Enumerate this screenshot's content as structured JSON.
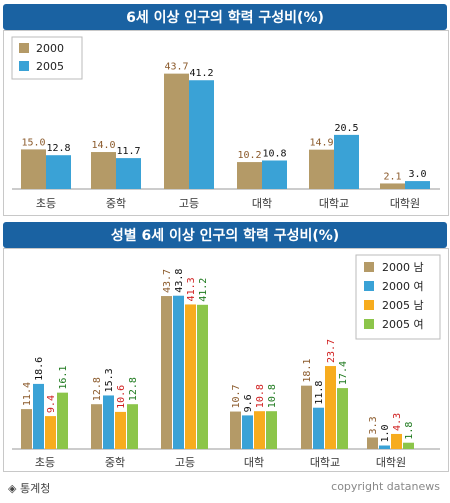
{
  "colors": {
    "title_bar": "#1a62a2",
    "bar_brown": "#b49a67",
    "bar_blue": "#3aa2d6",
    "bar_orange": "#f7ac1e",
    "bar_green": "#8cc54a",
    "label_brown": "#8b5a2b",
    "label_blue": "#111111",
    "label_red": "#d01f1f",
    "label_green": "#1f7a1f"
  },
  "chart_data": [
    {
      "type": "bar",
      "title": "6세 이상 인구의 학력 구성비(%)",
      "categories": [
        "초등",
        "중학",
        "고등",
        "대학",
        "대학교",
        "대학원"
      ],
      "series": [
        {
          "name": "2000",
          "values": [
            15.0,
            14.0,
            43.7,
            10.2,
            14.9,
            2.1
          ]
        },
        {
          "name": "2005",
          "values": [
            12.8,
            11.7,
            41.2,
            10.8,
            20.5,
            3.0
          ]
        }
      ],
      "value_labels": [
        [
          "15.0",
          "14.0",
          "43.7",
          "10.2",
          "14.9",
          "2.1"
        ],
        [
          "12.8",
          "11.7",
          "41.2",
          "10.8",
          "20.5",
          "3.0"
        ]
      ],
      "ylim": [
        0,
        50
      ],
      "grid": false,
      "legend": "top-left"
    },
    {
      "type": "bar",
      "title": "성별 6세 이상 인구의 학력 구성비(%)",
      "categories": [
        "초등",
        "중학",
        "고등",
        "대학",
        "대학교",
        "대학원"
      ],
      "series": [
        {
          "name": "2000 남",
          "values": [
            11.4,
            12.8,
            43.7,
            10.7,
            18.1,
            3.3
          ]
        },
        {
          "name": "2000 여",
          "values": [
            18.6,
            15.3,
            43.8,
            9.6,
            11.8,
            1.0
          ]
        },
        {
          "name": "2005 남",
          "values": [
            9.4,
            10.6,
            41.3,
            10.8,
            23.7,
            4.3
          ]
        },
        {
          "name": "2005 여",
          "values": [
            16.1,
            12.8,
            41.2,
            10.8,
            17.4,
            1.8
          ]
        }
      ],
      "value_labels": [
        [
          "11.4",
          "12.8",
          "43.7",
          "10.7",
          "18.1",
          "3.3"
        ],
        [
          "18.6",
          "15.3",
          "43.8",
          "9.6",
          "11.8",
          "1.0"
        ],
        [
          "9.4",
          "10.6",
          "41.3",
          "10.8",
          "23.7",
          "4.3"
        ],
        [
          "16.1",
          "12.8",
          "41.2",
          "10.8",
          "17.4",
          "1.8"
        ]
      ],
      "ylim": [
        0,
        50
      ],
      "grid": false,
      "legend": "top-right"
    }
  ],
  "footer": {
    "source": "◈ 통계청",
    "copyright": "copyright datanews"
  }
}
